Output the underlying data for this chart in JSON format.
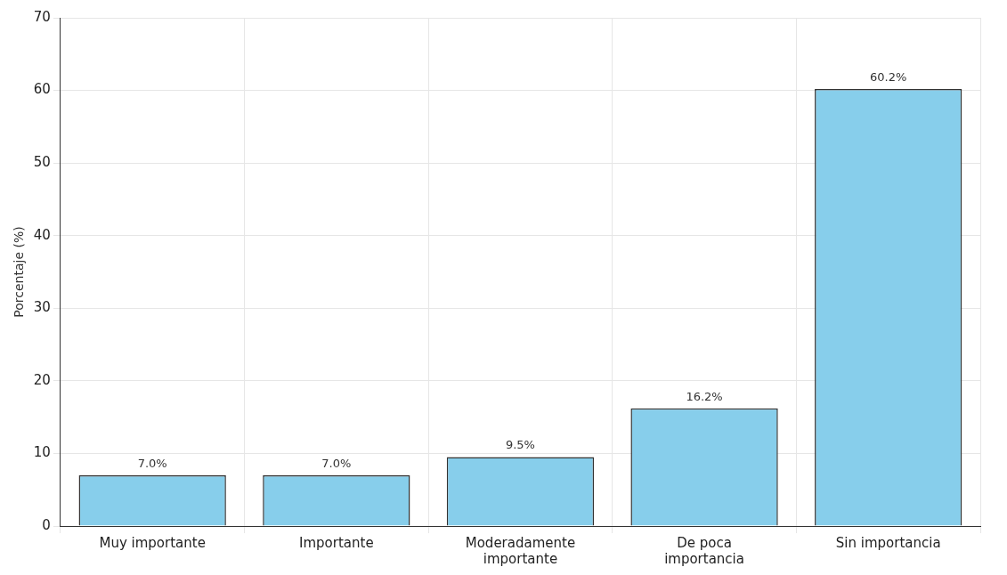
{
  "chart_data": {
    "type": "bar",
    "ylabel": "Porcentaje (%)",
    "categories": [
      "Muy importante",
      "Importante",
      "Moderadamente importante",
      "De poca importancia",
      "Sin importancia"
    ],
    "values": [
      7.0,
      7.0,
      9.5,
      16.2,
      60.2
    ],
    "value_labels": [
      "7.0%",
      "7.0%",
      "9.5%",
      "16.2%",
      "60.2%"
    ],
    "color": "#87ceeb",
    "ylim": [
      0,
      70
    ],
    "yticks": [
      0,
      10,
      20,
      30,
      40,
      50,
      60,
      70
    ],
    "grid": true,
    "legend": false
  }
}
